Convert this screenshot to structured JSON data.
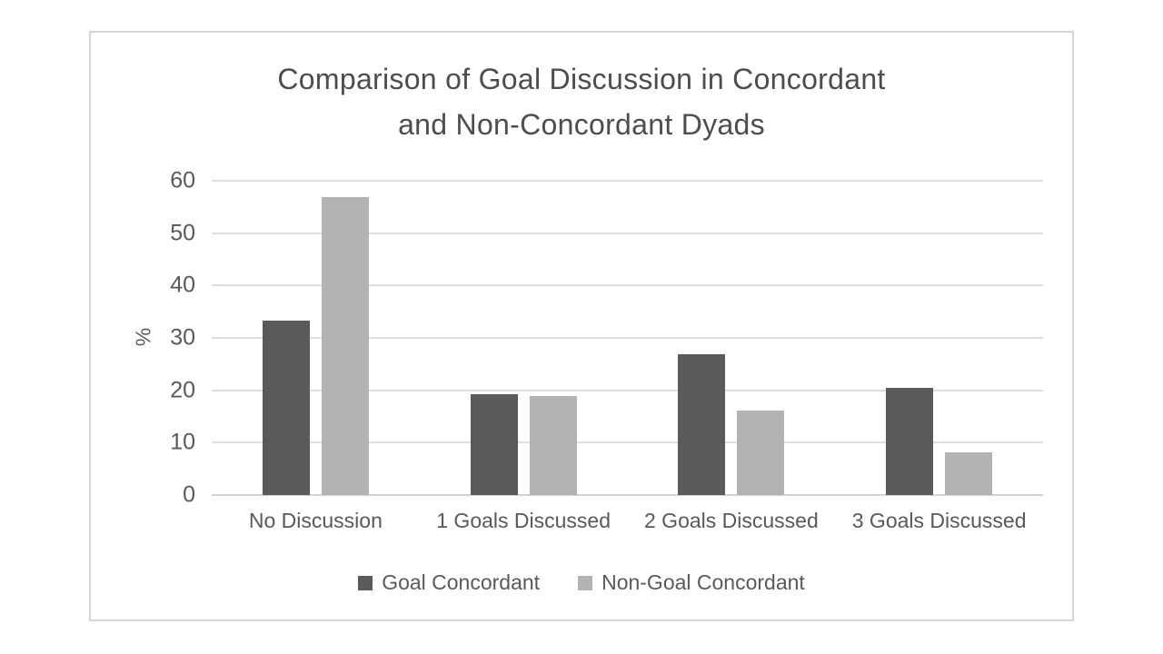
{
  "chart": {
    "title_line1": "Comparison of Goal Discussion in Concordant",
    "title_line2": "and Non-Concordant Dyads"
  },
  "chart_data": {
    "type": "bar",
    "title": "Comparison of Goal Discussion in Concordant and Non-Concordant Dyads",
    "categories": [
      "No Discussion",
      "1 Goals Discussed",
      "2 Goals Discussed",
      "3 Goals Discussed"
    ],
    "series": [
      {
        "name": "Goal Concordant",
        "color": "#5a5a5a",
        "values": [
          33.3,
          19.2,
          26.9,
          20.4
        ]
      },
      {
        "name": "Non-Goal Concordant",
        "color": "#b3b3b3",
        "values": [
          56.8,
          18.9,
          16.2,
          8.1
        ]
      }
    ],
    "xlabel": "",
    "ylabel": "%",
    "ylim": [
      0,
      60
    ],
    "yticks": [
      0,
      10,
      20,
      30,
      40,
      50,
      60
    ],
    "grid": true,
    "legend_position": "bottom",
    "colors": {
      "grid": "#dfdfdf",
      "axis_text": "#595959",
      "title_text": "#4d4d4d",
      "frame_border": "#d5d5d5",
      "background": "#ffffff"
    }
  }
}
